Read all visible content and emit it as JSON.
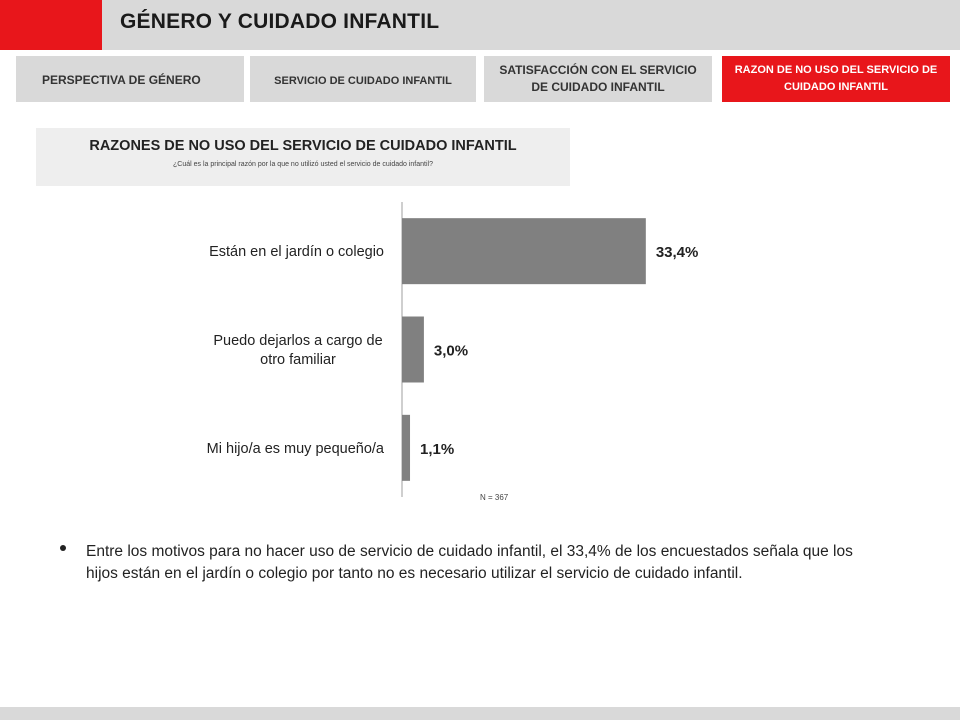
{
  "header": {
    "title": "GÉNERO Y CUIDADO INFANTIL",
    "accent_color": "#e8161b"
  },
  "tabs": [
    {
      "label": "PERSPECTIVA DE GÉNERO",
      "active": false
    },
    {
      "label": "SERVICIO DE CUIDADO INFANTIL",
      "active": false
    },
    {
      "label": "SATISFACCIÓN CON EL SERVICIO DE CUIDADO INFANTIL",
      "active": false
    },
    {
      "label": "RAZON DE NO USO DEL SERVICIO DE CUIDADO INFANTIL",
      "active": true
    }
  ],
  "question": {
    "title": "RAZONES DE NO USO DEL SERVICIO DE CUIDADO INFANTIL",
    "subtitle": "¿Cuál es la principal razón por la que no utilizó usted el servicio de cuidado infantil?"
  },
  "chart_data": {
    "type": "bar",
    "orientation": "horizontal",
    "categories": [
      "Están en el jardín o colegio",
      "Puedo dejarlos a cargo de otro familiar",
      "Mi hijo/a es muy pequeño/a"
    ],
    "category_lines": [
      [
        "Están en el jardín o colegio"
      ],
      [
        "Puedo dejarlos a cargo de",
        "otro familiar"
      ],
      [
        "Mi hijo/a es muy pequeño/a"
      ]
    ],
    "values": [
      33.4,
      3.0,
      1.1
    ],
    "value_labels": [
      "33,4%",
      "3,0%",
      "1,1%"
    ],
    "bar_color": "#808080",
    "xlim": [
      0,
      40
    ],
    "grid": false,
    "note": "N = 367"
  },
  "bullet": {
    "text": "Entre los motivos para no hacer uso de servicio de cuidado infantil, el 33,4% de los encuestados señala que los hijos están en el jardín o colegio por tanto no es necesario utilizar el servicio de cuidado infantil."
  }
}
